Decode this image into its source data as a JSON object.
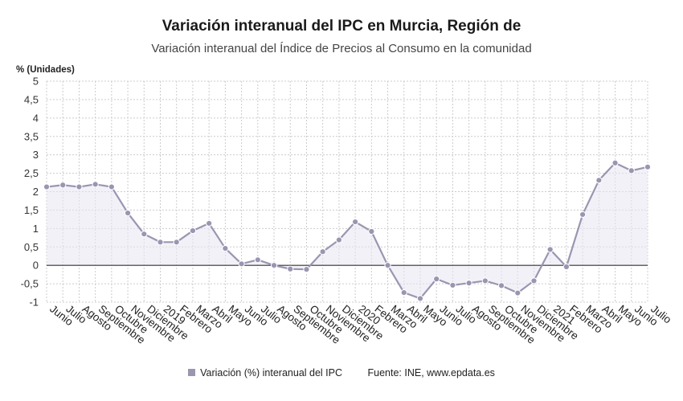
{
  "chart_data": {
    "type": "line",
    "title": "Variación interanual del IPC en Murcia, Región de",
    "subtitle": "Variación interanual del Índice de Precios al Consumo en la comunidad",
    "ylabel": "% (Unidades)",
    "xlabel": "",
    "ylim": [
      -1,
      5
    ],
    "yticks": [
      -1,
      -0.5,
      0,
      0.5,
      1,
      1.5,
      2,
      2.5,
      3,
      3.5,
      4,
      4.5,
      5
    ],
    "ytick_labels": [
      "-1",
      "-0,5",
      "0",
      "0,5",
      "1",
      "1,5",
      "2",
      "2,5",
      "3",
      "3,5",
      "4",
      "4,5",
      "5"
    ],
    "grid": true,
    "categories": [
      "Junio",
      "Julio",
      "Agosto",
      "Septiembre",
      "Octubre",
      "Noviembre",
      "Diciembre",
      "2019",
      "Febrero",
      "Marzo",
      "Abril",
      "Mayo",
      "Junio",
      "Julio",
      "Agosto",
      "Septiembre",
      "Octubre",
      "Noviembre",
      "Diciembre",
      "2020",
      "Febrero",
      "Marzo",
      "Abril",
      "Mayo",
      "Junio",
      "Julio",
      "Agosto",
      "Septiembre",
      "Octubre",
      "Noviembre",
      "Diciembre",
      "2021",
      "Febrero",
      "Marzo",
      "Abril",
      "Mayo",
      "Junio",
      "Julio"
    ],
    "series": [
      {
        "name": "Variación (%) interanual del IPC",
        "color": "#9a96b0",
        "values": [
          2.13,
          2.18,
          2.13,
          2.2,
          2.13,
          1.42,
          0.85,
          0.63,
          0.63,
          0.94,
          1.14,
          0.46,
          0.04,
          0.15,
          0.0,
          -0.1,
          -0.11,
          0.37,
          0.69,
          1.18,
          0.92,
          0.0,
          -0.74,
          -0.9,
          -0.37,
          -0.54,
          -0.48,
          -0.42,
          -0.55,
          -0.75,
          -0.42,
          0.43,
          -0.04,
          1.38,
          2.31,
          2.78,
          2.57,
          2.67
        ]
      }
    ]
  },
  "legend": {
    "label": "Variación (%) interanual del IPC",
    "source": "Fuente: INE, www.epdata.es"
  }
}
